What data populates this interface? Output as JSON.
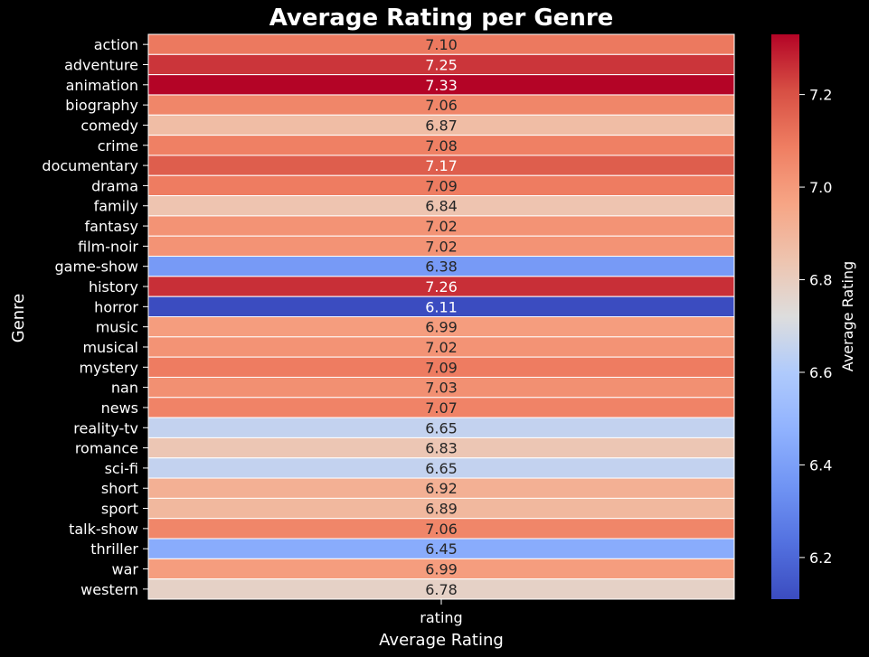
{
  "chart_data": {
    "type": "heatmap",
    "title": "Average Rating per Genre",
    "xlabel": "Average Rating",
    "ylabel": "Genre",
    "x_categories": [
      "rating"
    ],
    "y_categories": [
      "action",
      "adventure",
      "animation",
      "biography",
      "comedy",
      "crime",
      "documentary",
      "drama",
      "family",
      "fantasy",
      "film-noir",
      "game-show",
      "history",
      "horror",
      "music",
      "musical",
      "mystery",
      "nan",
      "news",
      "reality-tv",
      "romance",
      "sci-fi",
      "short",
      "sport",
      "talk-show",
      "thriller",
      "war",
      "western"
    ],
    "values": [
      7.1,
      7.25,
      7.33,
      7.06,
      6.87,
      7.08,
      7.17,
      7.09,
      6.84,
      7.02,
      7.02,
      6.38,
      7.26,
      6.11,
      6.99,
      7.02,
      7.09,
      7.03,
      7.07,
      6.65,
      6.83,
      6.65,
      6.92,
      6.89,
      7.06,
      6.45,
      6.99,
      6.78
    ],
    "value_labels": [
      "7.10",
      "7.25",
      "7.33",
      "7.06",
      "6.87",
      "7.08",
      "7.17",
      "7.09",
      "6.84",
      "7.02",
      "7.02",
      "6.38",
      "7.26",
      "6.11",
      "6.99",
      "7.02",
      "7.09",
      "7.03",
      "7.07",
      "6.65",
      "6.83",
      "6.65",
      "6.92",
      "6.89",
      "7.06",
      "6.45",
      "6.99",
      "6.78"
    ],
    "colormap": "coolwarm",
    "vmin": 6.11,
    "vmax": 7.33,
    "colorbar": {
      "label": "Average Rating",
      "ticks": [
        6.2,
        6.4,
        6.6,
        6.8,
        7.0,
        7.2
      ],
      "tick_labels": [
        "6.2",
        "6.4",
        "6.6",
        "6.8",
        "7.0",
        "7.2"
      ]
    },
    "grid": false,
    "cell_border_color": "#ffffff",
    "background": "#000000"
  }
}
